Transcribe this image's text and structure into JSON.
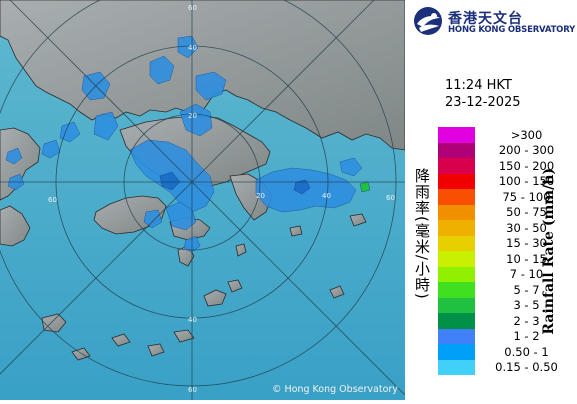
{
  "header": {
    "chinese_name": "香港天文台",
    "english_name": "HONG KONG OBSERVATORY"
  },
  "timestamp": {
    "time": "11:24 HKT",
    "date": "23-12-2025"
  },
  "legend": {
    "title_cn": "降雨率(毫米/小時)",
    "title_en": "Rainfall Rate (mm/h)",
    "items": [
      {
        "label": ">300",
        "color": "#e000e0"
      },
      {
        "label": "200 - 300",
        "color": "#b00078"
      },
      {
        "label": "150 - 200",
        "color": "#d8004c"
      },
      {
        "label": "100 - 150",
        "color": "#f00000"
      },
      {
        "label": "75 - 100",
        "color": "#f85000"
      },
      {
        "label": "50 - 75",
        "color": "#f09000"
      },
      {
        "label": "30 - 50",
        "color": "#f0b000"
      },
      {
        "label": "15 - 30",
        "color": "#e8d000"
      },
      {
        "label": "10 - 15",
        "color": "#c8f000"
      },
      {
        "label": "7 - 10",
        "color": "#90f000"
      },
      {
        "label": "5 - 7",
        "color": "#40e020"
      },
      {
        "label": "3 - 5",
        "color": "#20c040"
      },
      {
        "label": "2 - 3",
        "color": "#009048"
      },
      {
        "label": "1 - 2",
        "color": "#4080f8"
      },
      {
        "label": "0.50 - 1",
        "color": "#00a0f8"
      },
      {
        "label": "0.15 - 0.50",
        "color": "#40d0f8"
      }
    ]
  },
  "map": {
    "range_labels": [
      "60",
      "40",
      "20",
      "60",
      "40",
      "20",
      "60",
      "40",
      "60"
    ],
    "copyright": "© Hong Kong Observatory",
    "sea_color": "#46a9c9",
    "rain_color": "#2e8fe0"
  }
}
